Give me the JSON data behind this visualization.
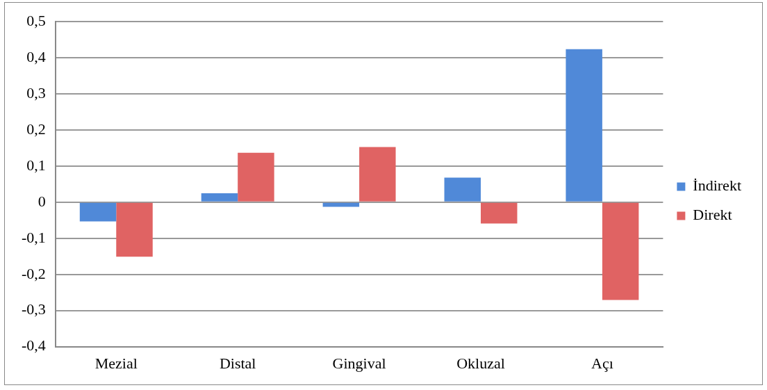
{
  "chart_data": {
    "type": "bar",
    "categories": [
      "Mezial",
      "Distal",
      "Gingival",
      "Okluzal",
      "Açı"
    ],
    "series": [
      {
        "name": "İndirekt",
        "color": "#5089d8",
        "values": [
          -0.053,
          0.025,
          -0.013,
          0.068,
          0.424
        ]
      },
      {
        "name": "Direkt",
        "color": "#e06363",
        "values": [
          -0.151,
          0.137,
          0.153,
          -0.059,
          -0.271
        ]
      }
    ],
    "ylim": [
      -0.4,
      0.5
    ],
    "yticks": [
      {
        "value": -0.4,
        "label": "-0,4"
      },
      {
        "value": -0.3,
        "label": "-0,3"
      },
      {
        "value": -0.2,
        "label": "-0,2"
      },
      {
        "value": -0.1,
        "label": "-0,1"
      },
      {
        "value": 0,
        "label": "0"
      },
      {
        "value": 0.1,
        "label": "0,1"
      },
      {
        "value": 0.2,
        "label": "0,2"
      },
      {
        "value": 0.3,
        "label": "0,3"
      },
      {
        "value": 0.4,
        "label": "0,4"
      },
      {
        "value": 0.5,
        "label": "0,5"
      }
    ],
    "grid": "y",
    "legend": "right"
  }
}
